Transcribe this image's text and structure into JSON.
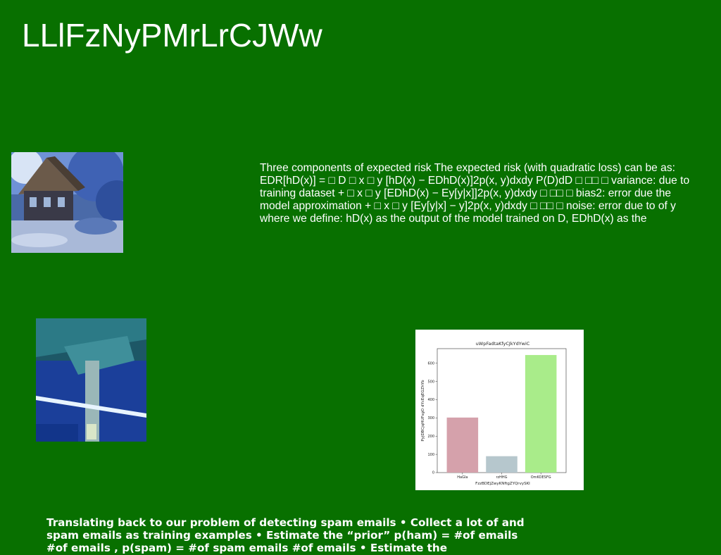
{
  "page": {
    "background": "#087000",
    "title": "LLlFzNyPMrLrCJWw"
  },
  "images": {
    "house": "wooden-house-in-blue-forest-photo",
    "garage": "blue-lit-concrete-garage-photo"
  },
  "paragraphs": {
    "risk": "Three components of expected risk The expected risk (with quadratic loss) can be as: EDR[hD(x)] = □ D □ x □ y [hD(x) − EDhD(x)]2p(x, y)dxdy P(D)dD □ □□ □ variance: due to training dataset + □ x □ y [EDhD(x) − Ey[y|x]]2p(x, y)dxdy □ □□ □ bias2: error due the model approximation + □ x □ y [Ey[y|x] − y]2p(x, y)dxdy □ □□ □ noise: error due to of y where we define: hD(x) as the output of the model trained on D, EDhD(x) as the",
    "spam": "Translating back to our problem of detecting spam emails • Collect a lot of and spam emails as training examples • Estimate the “prior” p(ham) = #of emails #of emails , p(spam) = #of spam emails #of emails • Estimate the"
  },
  "chart_data": {
    "type": "bar",
    "title": "uWpFadtaKfyCJkYdYwiC",
    "xlabel": "FzzBDEjZwyKNftgZYQrvySKI",
    "ylabel": "PyjDBCjqHUFsgO dYcEqEGZhYb",
    "categories": [
      "HaGla",
      "rzHHG",
      "OmKOESFG"
    ],
    "values": [
      302,
      90,
      645
    ],
    "colors": [
      "#d5a1ab",
      "#b6c7cd",
      "#a9ec8a"
    ],
    "ylim": [
      0,
      680
    ],
    "yticks": [
      0,
      100,
      200,
      300,
      400,
      500,
      600
    ],
    "grid": false
  }
}
